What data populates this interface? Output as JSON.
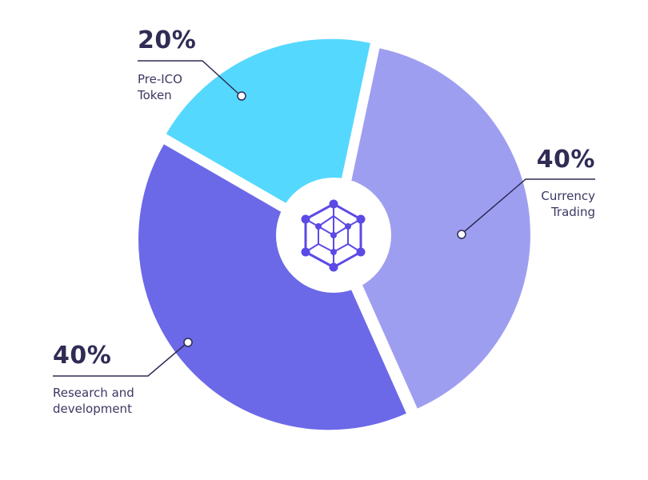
{
  "chart_data": {
    "type": "pie",
    "title": "",
    "slices": [
      {
        "label": "Pre-ICO Token",
        "line1": "Pre-ICO",
        "line2": "Token",
        "value": 20,
        "display": "20%",
        "color": "#55d8fe"
      },
      {
        "label": "Currency Trading",
        "line1": "Currency",
        "line2": "Trading",
        "value": 40,
        "display": "40%",
        "color": "#9e9ef1"
      },
      {
        "label": "Research and development",
        "line1": "Research and",
        "line2": "development",
        "value": 40,
        "display": "40%",
        "color": "#6b69e8"
      }
    ],
    "donut": true,
    "center_icon": "hexagon-network-icon",
    "icon_color": "#5b4ae6",
    "text_color": "#2f2c55"
  }
}
